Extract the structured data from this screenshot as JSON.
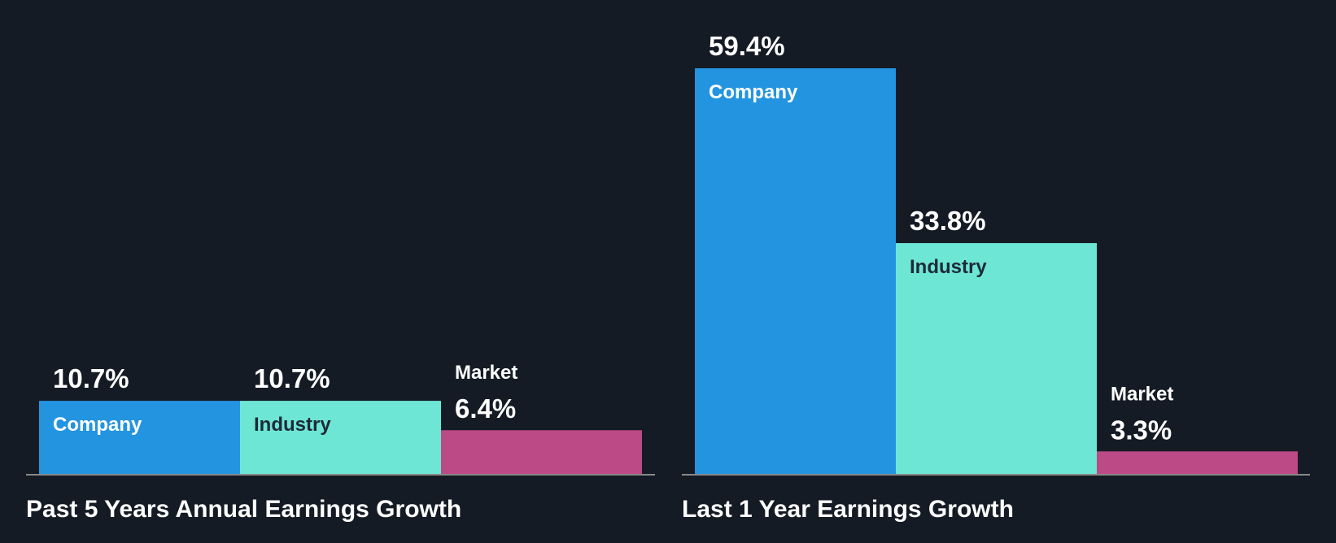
{
  "colors": {
    "background": "#151b24",
    "company": "#2394e0",
    "industry": "#6ee6d6",
    "market": "#bb4a87",
    "axis": "#888888",
    "text_light": "#ffffff",
    "text_dark": "#1e2a36"
  },
  "chart_data": [
    {
      "type": "bar",
      "title": "Past 5 Years Annual Earnings Growth",
      "categories": [
        "Company",
        "Industry",
        "Market"
      ],
      "values": [
        10.7,
        10.7,
        6.4
      ],
      "value_labels": [
        "10.7%",
        "10.7%",
        "6.4%"
      ],
      "unit": "%",
      "ylim": [
        0,
        59.4
      ]
    },
    {
      "type": "bar",
      "title": "Last 1 Year Earnings Growth",
      "categories": [
        "Company",
        "Industry",
        "Market"
      ],
      "values": [
        59.4,
        33.8,
        3.3
      ],
      "value_labels": [
        "59.4%",
        "33.8%",
        "3.3%"
      ],
      "unit": "%",
      "ylim": [
        0,
        59.4
      ]
    }
  ]
}
